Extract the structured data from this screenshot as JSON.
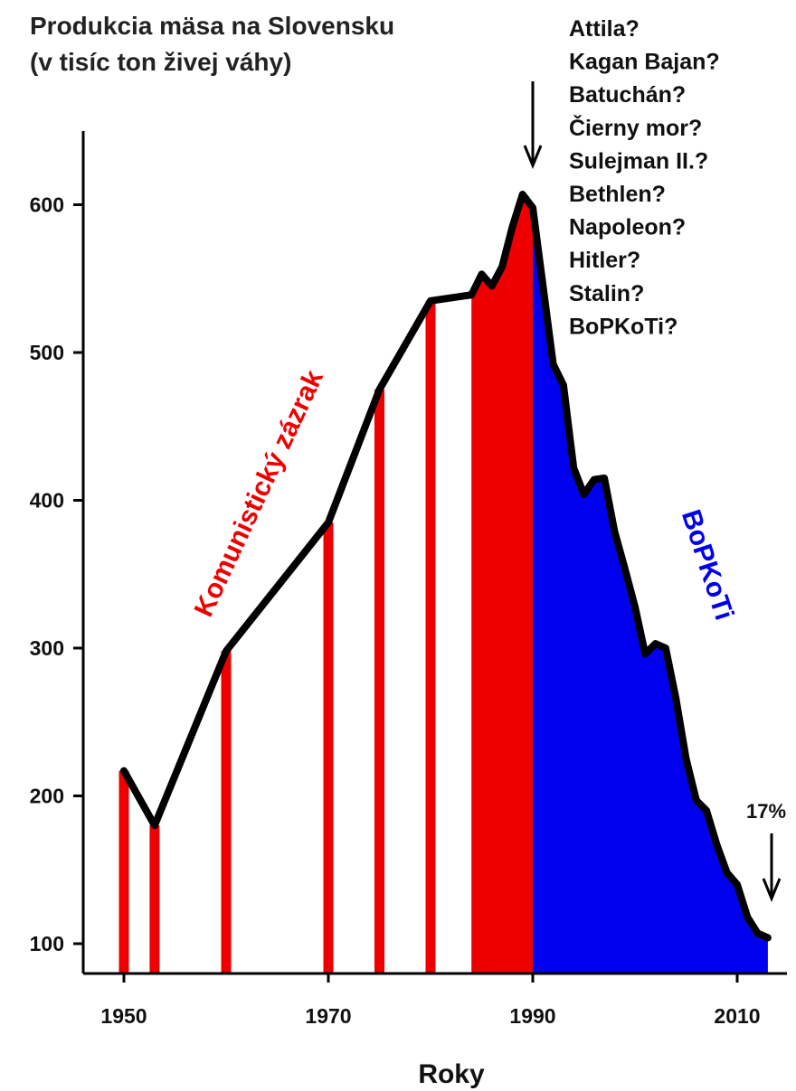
{
  "chart_data": {
    "type": "area",
    "title_lines": [
      "Produkcia mäsa na Slovensku",
      "(v tisíc ton živej váhy)"
    ],
    "xlabel": "Roky",
    "xlim": [
      1946,
      2015
    ],
    "ylim": [
      95,
      650
    ],
    "x_ticks": [
      1950,
      1970,
      1990,
      2010
    ],
    "y_ticks": [
      100,
      200,
      300,
      400,
      500,
      600
    ],
    "series": [
      {
        "x": [
          1950,
          1953,
          1960,
          1970,
          1975,
          1980,
          1984,
          1985,
          1986,
          1987,
          1988,
          1989,
          1990,
          1991,
          1992,
          1993,
          1994,
          1995,
          1996,
          1997,
          1998,
          1999,
          2000,
          2001,
          2002,
          2003,
          2004,
          2005,
          2006,
          2007,
          2008,
          2009,
          2010,
          2011,
          2012,
          2013
        ],
        "y": [
          217,
          180,
          298,
          385,
          475,
          535,
          539,
          553,
          545,
          558,
          585,
          607,
          598,
          545,
          492,
          478,
          422,
          404,
          414,
          415,
          379,
          354,
          328,
          296,
          303,
          300,
          266,
          225,
          197,
          190,
          167,
          148,
          140,
          118,
          107,
          104
        ]
      }
    ],
    "red_stripe_years": [
      1950,
      1953,
      1960,
      1970,
      1975,
      1980
    ],
    "red_fill_range": [
      1984,
      1990
    ],
    "blue_fill_range": [
      1990,
      2013
    ],
    "colors": {
      "line": "#000000",
      "communist": "#ee0000",
      "bopkoti": "#0000ee"
    },
    "annotations": {
      "communist": "Komunistický zázrak",
      "bopkoti": "BoPKoTi",
      "percent": "17%",
      "questions": [
        "Attila?",
        "Kagan Bajan?",
        "Batuchán?",
        "Čierny mor?",
        "Sulejman II.?",
        "Bethlen?",
        "Napoleon?",
        "Hitler?",
        "Stalin?",
        "BoPKoTi?"
      ]
    }
  }
}
